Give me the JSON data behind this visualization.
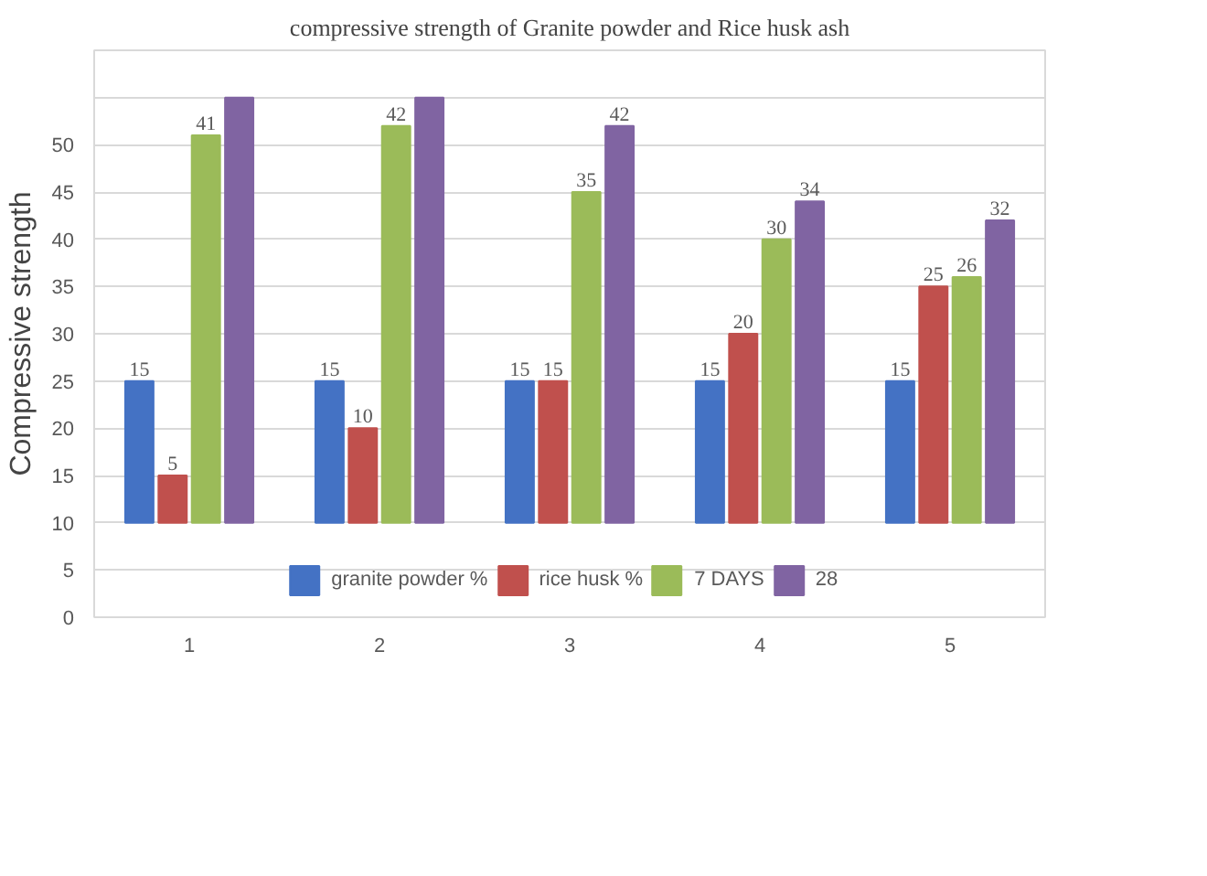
{
  "chart_data": {
    "type": "bar",
    "title": "compressive strength of Granite powder and Rice husk ash",
    "ylabel": "Compressive strength",
    "categories": [
      "1",
      "2",
      "3",
      "4",
      "5"
    ],
    "series": [
      {
        "name": "granite powder %",
        "color": "#4472c4",
        "base": [
          10,
          10,
          10,
          10,
          10
        ],
        "values": [
          15,
          15,
          15,
          15,
          15
        ],
        "value_labels": [
          "15",
          "15",
          "15",
          "15",
          "15"
        ]
      },
      {
        "name": "rice husk %",
        "color": "#c0504d",
        "base": [
          10,
          10,
          10,
          10,
          10
        ],
        "values": [
          5,
          10,
          15,
          20,
          25
        ],
        "value_labels": [
          "5",
          "10",
          "15",
          "20",
          "25"
        ]
      },
      {
        "name": "7 DAYS",
        "color": "#9bbb59",
        "base": [
          10,
          10,
          10,
          10,
          10
        ],
        "values": [
          41,
          42,
          35,
          30,
          26
        ],
        "value_labels": [
          "41",
          "42",
          "35",
          "30",
          "26"
        ]
      },
      {
        "name": "28",
        "color": "#8064a2",
        "base": [
          10,
          10,
          10,
          10,
          10
        ],
        "values": [
          45,
          45,
          42,
          34,
          32
        ],
        "value_labels": [
          null,
          null,
          "42",
          "34",
          "32"
        ]
      }
    ],
    "ylim": [
      0,
      60
    ],
    "yticks": [
      0,
      5,
      10,
      15,
      20,
      25,
      30,
      35,
      40,
      45,
      50,
      {
        "value": 55,
        "label": null
      },
      {
        "value": 60,
        "label": null
      }
    ],
    "grid": "y",
    "legend": "bottom"
  }
}
